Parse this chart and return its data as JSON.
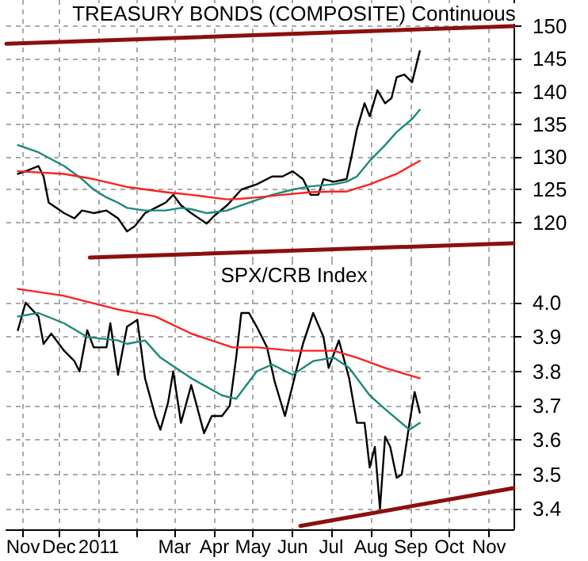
{
  "chart_data": [
    {
      "type": "line",
      "title": "TREASURY BONDS (COMPOSITE) Continuous",
      "tick_labels": "y",
      "grid": true,
      "xlim": [
        "2010-11-05",
        "2011-12-05"
      ],
      "ylim": [
        114,
        154
      ],
      "yticks": [
        120,
        125,
        130,
        135,
        140,
        145,
        150
      ],
      "series": [
        {
          "color": "#000000",
          "x": [
            "2010-11-14",
            "2010-11-20",
            "2010-11-30",
            "2010-12-04",
            "2010-12-08",
            "2010-12-14",
            "2010-12-20",
            "2010-12-28",
            "2011-01-03",
            "2011-01-12",
            "2011-01-22",
            "2011-01-31",
            "2011-02-07",
            "2011-02-13",
            "2011-02-21",
            "2011-03-01",
            "2011-03-09",
            "2011-03-15",
            "2011-03-21",
            "2011-03-29",
            "2011-04-10",
            "2011-04-16",
            "2011-04-26",
            "2011-05-07",
            "2011-05-19",
            "2011-05-31",
            "2011-06-08",
            "2011-06-16",
            "2011-06-24",
            "2011-06-30",
            "2011-07-06",
            "2011-07-10",
            "2011-07-18",
            "2011-07-28",
            "2011-08-01",
            "2011-08-05",
            "2011-08-11",
            "2011-08-15",
            "2011-08-21",
            "2011-08-27",
            "2011-09-01",
            "2011-09-05",
            "2011-09-11",
            "2011-09-17",
            "2011-09-23"
          ],
          "values": [
            127.4,
            127.8,
            128.6,
            127,
            123,
            122.2,
            121.4,
            120.6,
            121.8,
            121.4,
            121.8,
            120.6,
            118.6,
            119.4,
            121.4,
            122.2,
            123,
            124.2,
            122.6,
            121.4,
            119.8,
            121,
            122.6,
            125,
            125.8,
            127,
            127,
            127.8,
            126.6,
            124.2,
            124.2,
            126.6,
            126.2,
            126.6,
            130.2,
            134.2,
            138.2,
            136.2,
            140.2,
            138.2,
            139,
            142.2,
            142.6,
            141.4,
            146.2
          ]
        },
        {
          "color": "#1a8a7a",
          "x": [
            "2010-11-14",
            "2010-11-30",
            "2010-12-20",
            "2011-01-03",
            "2011-01-12",
            "2011-01-22",
            "2011-01-31",
            "2011-02-07",
            "2011-02-21",
            "2011-03-09",
            "2011-03-21",
            "2011-03-29",
            "2011-04-10",
            "2011-04-26",
            "2011-05-07",
            "2011-05-19",
            "2011-05-31",
            "2011-06-16",
            "2011-06-30",
            "2011-07-18",
            "2011-07-28",
            "2011-08-05",
            "2011-08-15",
            "2011-08-27",
            "2011-09-05",
            "2011-09-17",
            "2011-09-23"
          ],
          "values": [
            131.8,
            130.7,
            128.6,
            126.6,
            125,
            123.8,
            123,
            122.2,
            121.8,
            121.8,
            122.2,
            122,
            121.4,
            121.8,
            122.6,
            123.4,
            124.2,
            125,
            125.5,
            125.8,
            126.2,
            127,
            129.4,
            131.8,
            133.8,
            135.8,
            137.2
          ]
        },
        {
          "color": "#ff2020",
          "x": [
            "2010-11-14",
            "2010-12-20",
            "2011-01-12",
            "2011-02-07",
            "2011-03-09",
            "2011-03-29",
            "2011-04-26",
            "2011-05-07",
            "2011-05-19",
            "2011-06-08",
            "2011-06-30",
            "2011-07-18",
            "2011-07-28",
            "2011-08-15",
            "2011-09-05",
            "2011-09-23"
          ],
          "values": [
            127.8,
            127.4,
            126.6,
            125.4,
            124.6,
            124.2,
            123.5,
            123.6,
            123.8,
            124.2,
            124.6,
            124.7,
            124.7,
            125.8,
            127.4,
            129.4
          ]
        },
        {
          "color": "#8b1010",
          "x": [
            "2010-11-05",
            "2011-12-05"
          ],
          "values": [
            147.3,
            150
          ]
        },
        {
          "color": "#8b1010",
          "x": [
            "2011-01-09",
            "2011-12-05"
          ],
          "values": [
            114.6,
            116.8
          ]
        }
      ]
    },
    {
      "type": "line",
      "title": "SPX/CRB Index",
      "grid": true,
      "xlim": [
        "2010-11-05",
        "2011-12-05"
      ],
      "ylim": [
        3.34,
        4.12
      ],
      "xticks": [
        {
          "value": "2010-11-18",
          "label": "Nov"
        },
        {
          "value": "2010-12-16",
          "label": "Dec"
        },
        {
          "value": "2011-01-16",
          "label": "2011"
        },
        {
          "value": "2011-02-15",
          "label": null
        },
        {
          "value": "2011-03-16",
          "label": "Mar"
        },
        {
          "value": "2011-04-16",
          "label": "Apr"
        },
        {
          "value": "2011-05-16",
          "label": "May"
        },
        {
          "value": "2011-06-16",
          "label": "Jun"
        },
        {
          "value": "2011-07-16",
          "label": "Jul"
        },
        {
          "value": "2011-08-16",
          "label": "Aug"
        },
        {
          "value": "2011-09-16",
          "label": "Sep"
        },
        {
          "value": "2011-10-16",
          "label": "Oct"
        },
        {
          "value": "2011-11-16",
          "label": "Nov"
        }
      ],
      "yticks": [
        3.4,
        3.5,
        3.6,
        3.7,
        3.8,
        3.9,
        {
          "value": 4,
          "label": "4.0"
        }
      ],
      "series": [
        {
          "color": "#000000",
          "x": [
            "2010-11-14",
            "2010-11-20",
            "2010-11-30",
            "2010-12-04",
            "2010-12-10",
            "2010-12-20",
            "2010-12-28",
            "2011-01-01",
            "2011-01-07",
            "2011-01-12",
            "2011-01-22",
            "2011-01-25",
            "2011-01-31",
            "2011-02-07",
            "2011-02-15",
            "2011-02-21",
            "2011-03-01",
            "2011-03-05",
            "2011-03-11",
            "2011-03-15",
            "2011-03-21",
            "2011-03-29",
            "2011-04-08",
            "2011-04-14",
            "2011-04-22",
            "2011-04-28",
            "2011-05-03",
            "2011-05-07",
            "2011-05-13",
            "2011-05-19",
            "2011-05-27",
            "2011-06-02",
            "2011-06-10",
            "2011-06-16",
            "2011-06-24",
            "2011-07-02",
            "2011-07-10",
            "2011-07-14",
            "2011-07-22",
            "2011-07-30",
            "2011-08-05",
            "2011-08-11",
            "2011-08-15",
            "2011-08-19",
            "2011-08-23",
            "2011-08-27",
            "2011-08-31",
            "2011-09-05",
            "2011-09-09",
            "2011-09-15",
            "2011-09-19",
            "2011-09-23"
          ],
          "values": [
            3.92,
            4.0,
            3.96,
            3.88,
            3.91,
            3.86,
            3.83,
            3.8,
            3.92,
            3.87,
            3.87,
            3.94,
            3.79,
            3.93,
            3.95,
            3.78,
            3.67,
            3.63,
            3.71,
            3.8,
            3.65,
            3.76,
            3.62,
            3.67,
            3.67,
            3.7,
            3.84,
            3.97,
            3.97,
            3.93,
            3.87,
            3.77,
            3.67,
            3.76,
            3.88,
            3.97,
            3.9,
            3.81,
            3.89,
            3.78,
            3.65,
            3.65,
            3.52,
            3.58,
            3.4,
            3.61,
            3.58,
            3.49,
            3.5,
            3.65,
            3.74,
            3.68
          ]
        },
        {
          "color": "#1a8a7a",
          "x": [
            "2010-11-14",
            "2010-11-30",
            "2010-12-20",
            "2011-01-07",
            "2011-01-31",
            "2011-02-07",
            "2011-02-21",
            "2011-03-05",
            "2011-03-29",
            "2011-04-22",
            "2011-05-03",
            "2011-05-19",
            "2011-05-31",
            "2011-06-16",
            "2011-07-02",
            "2011-07-18",
            "2011-07-30",
            "2011-08-15",
            "2011-08-27",
            "2011-09-15",
            "2011-09-23"
          ],
          "values": [
            3.96,
            3.97,
            3.94,
            3.9,
            3.89,
            3.88,
            3.89,
            3.84,
            3.78,
            3.73,
            3.72,
            3.8,
            3.82,
            3.79,
            3.83,
            3.84,
            3.81,
            3.73,
            3.69,
            3.63,
            3.65
          ]
        },
        {
          "color": "#ff2020",
          "x": [
            "2010-11-14",
            "2010-12-20",
            "2011-01-31",
            "2011-03-01",
            "2011-03-29",
            "2011-04-30",
            "2011-05-19",
            "2011-06-16",
            "2011-07-18",
            "2011-08-05",
            "2011-08-27",
            "2011-09-23"
          ],
          "values": [
            4.04,
            4.02,
            3.98,
            3.96,
            3.91,
            3.87,
            3.87,
            3.86,
            3.86,
            3.84,
            3.81,
            3.78
          ]
        },
        {
          "color": "#8b1010",
          "x": [
            "2011-06-22",
            "2011-12-05"
          ],
          "values": [
            3.35,
            3.46
          ]
        }
      ]
    }
  ]
}
